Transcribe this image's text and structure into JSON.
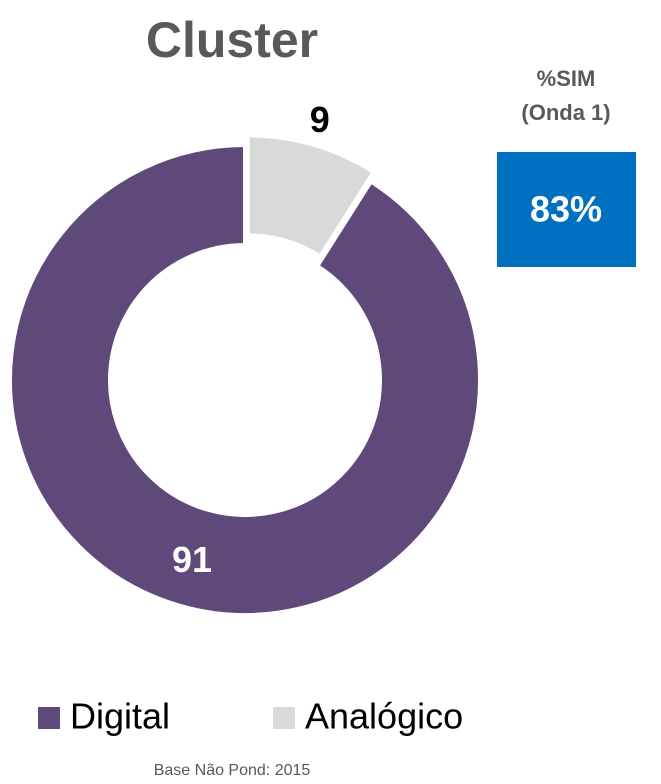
{
  "chart_data": {
    "type": "donut",
    "title": "Cluster",
    "categories": [
      "Digital",
      "Analógico"
    ],
    "values": [
      91,
      9
    ],
    "colors": [
      "#5f497a",
      "#d9d9d9"
    ],
    "legend": "bottom"
  },
  "sim_box": {
    "label_lines": [
      "%SIM",
      "(Onda 1)"
    ],
    "text": "83%"
  },
  "note": "Base Não Pond: 2015"
}
